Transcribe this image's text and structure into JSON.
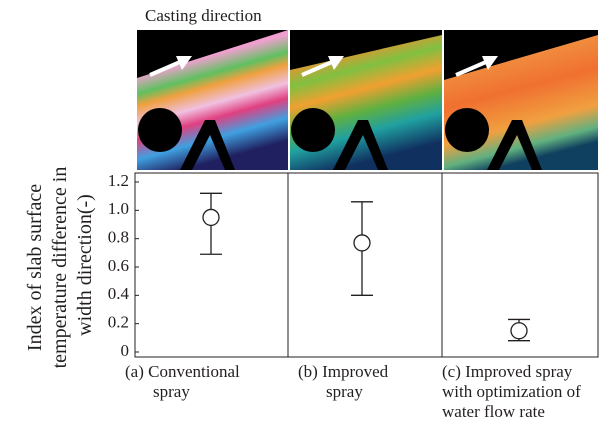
{
  "chart_data": {
    "type": "errorpoint",
    "annotation": "Casting direction",
    "ylabel": [
      "Index of slab surface",
      "temperature difference in",
      "width direction(-)"
    ],
    "categories": [
      [
        "(a) Conventional",
        "spray"
      ],
      [
        "(b) Improved",
        "spray"
      ],
      [
        "(c)  Improved spray",
        "with optimization of",
        "water flow rate"
      ]
    ],
    "values": [
      0.95,
      0.77,
      0.15
    ],
    "lower": [
      0.69,
      0.4,
      0.08
    ],
    "upper": [
      1.12,
      1.06,
      0.23
    ],
    "ylim": [
      0,
      1.2
    ],
    "yticks": [
      0,
      {
        "value": 0.2,
        "label": "0.2"
      },
      {
        "value": 0.4,
        "label": "0.4"
      },
      {
        "value": 0.6,
        "label": "0.6"
      },
      {
        "value": 0.8,
        "label": "0.8"
      },
      {
        "value": 1.0,
        "label": "1.0"
      },
      {
        "value": 1.2,
        "label": "1.2"
      }
    ]
  }
}
